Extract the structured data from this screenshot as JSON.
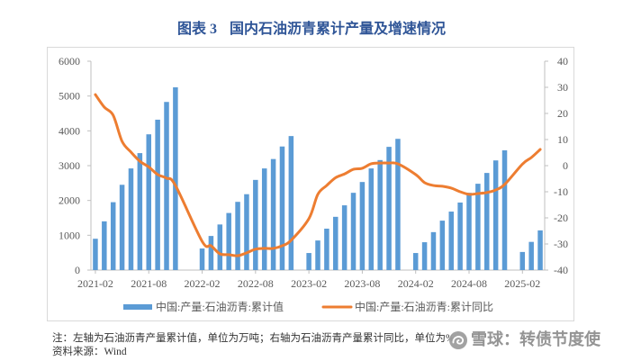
{
  "figure_label": "图表 3",
  "chart_data": {
    "type": "bar",
    "title": "国内石油沥青累计产量及增速情况",
    "frequency": "monthly",
    "categories": [
      "2021-02",
      "2021-03",
      "2021-04",
      "2021-05",
      "2021-06",
      "2021-07",
      "2021-08",
      "2021-09",
      "2021-10",
      "2021-11",
      "2021-12",
      "2022-01",
      "2022-02",
      "2022-03",
      "2022-04",
      "2022-05",
      "2022-06",
      "2022-07",
      "2022-08",
      "2022-09",
      "2022-10",
      "2022-11",
      "2022-12",
      "2023-01",
      "2023-02",
      "2023-03",
      "2023-04",
      "2023-05",
      "2023-06",
      "2023-07",
      "2023-08",
      "2023-09",
      "2023-10",
      "2023-11",
      "2023-12",
      "2024-01",
      "2024-02",
      "2024-03",
      "2024-04",
      "2024-05",
      "2024-06",
      "2024-07",
      "2024-08",
      "2024-09",
      "2024-10",
      "2024-11",
      "2024-12",
      "2025-01",
      "2025-02",
      "2025-03",
      "2025-04"
    ],
    "xticks": [
      "2021-02",
      "2021-08",
      "2022-02",
      "2022-08",
      "2023-02",
      "2023-08",
      "2024-02",
      "2024-08",
      "2025-02"
    ],
    "y_left": {
      "ylim": [
        0,
        6000
      ],
      "ticks": [
        0,
        1000,
        2000,
        3000,
        4000,
        5000,
        6000
      ]
    },
    "y_right": {
      "ylim": [
        -40,
        40
      ],
      "ticks": [
        40,
        30,
        20,
        10,
        0,
        -10,
        -20,
        -30,
        -40
      ]
    },
    "grid": false,
    "legend": "bottom",
    "series": [
      {
        "name": "中国:产量:石油沥青:累计值",
        "type": "bar",
        "axis": "left",
        "color": "#5B9BD5",
        "values": [
          900,
          1400,
          1950,
          2450,
          2920,
          3360,
          3900,
          4320,
          4830,
          5250,
          null,
          null,
          620,
          980,
          1310,
          1640,
          1960,
          2180,
          2590,
          2920,
          3190,
          3550,
          3850,
          null,
          490,
          850,
          1190,
          1530,
          1860,
          2220,
          2530,
          2920,
          3160,
          3540,
          3770,
          null,
          490,
          800,
          1090,
          1420,
          1680,
          1940,
          2220,
          2480,
          2790,
          3150,
          3440,
          null,
          520,
          810,
          1140
        ]
      },
      {
        "name": "中国:产量:石油沥青:累计同比",
        "type": "line",
        "axis": "right",
        "color": "#ED7D31",
        "values": [
          27.2,
          22.4,
          19.3,
          9.3,
          5.2,
          1.7,
          -0.5,
          -3.4,
          -4.8,
          -7.6,
          null,
          null,
          -29.0,
          -30.7,
          -33.8,
          -34.1,
          -34.5,
          -33.4,
          -32.0,
          -31.7,
          -31.7,
          -30.7,
          -28.6,
          null,
          -20.3,
          -11.0,
          -7.6,
          -4.6,
          -3.2,
          -1.4,
          -1.0,
          0.7,
          1.0,
          1.0,
          0.7,
          null,
          -3.4,
          -6.5,
          -7.6,
          -7.9,
          -8.6,
          -10.0,
          -11.0,
          -10.7,
          -10.3,
          -9.3,
          -7.2,
          null,
          0.6,
          3.1,
          6.2
        ]
      }
    ]
  },
  "notes": {
    "line1": "注：左轴为石油沥青产量累计值，单位为万吨；右轴为石油沥青产量累计同比，单位为%",
    "line2": "资料来源：Wind"
  },
  "watermark": {
    "text": "雪球：转债节度使",
    "color": "#8c8c8c"
  },
  "colors": {
    "title": "#2F5597",
    "axis": "#BFBFBF",
    "frame": "#D9D9D9"
  }
}
